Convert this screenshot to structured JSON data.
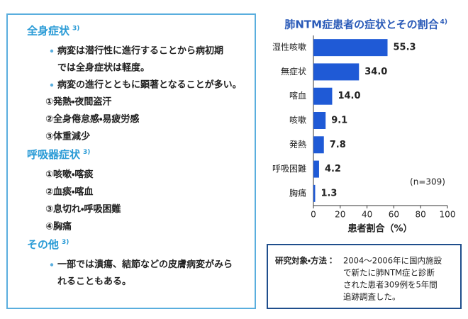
{
  "symptoms": {
    "sections": [
      {
        "heading": "全身症状",
        "ref": "3)",
        "items": [
          {
            "lines": [
              "病変は潜行性に進行することから病初期",
              "では全身症状は軽度。"
            ]
          },
          {
            "lines": [
              "病変の進行とともに顕著となることが多い。"
            ]
          },
          {
            "lines": [
              "①発熱・夜間盗汗"
            ]
          },
          {
            "lines": [
              "②全身倦怠感・易疲労感"
            ]
          },
          {
            "lines": [
              "③体重減少"
            ]
          }
        ]
      },
      {
        "heading": "呼吸器症状",
        "ref": "3)",
        "items": [
          {
            "lines": [
              "①咳嗽・喀痰"
            ]
          },
          {
            "lines": [
              "②血痰・喀血"
            ]
          },
          {
            "lines": [
              "③息切れ・呼吸困難"
            ]
          },
          {
            "lines": [
              "④胸痛"
            ]
          }
        ]
      },
      {
        "heading": "その他",
        "ref": "3)",
        "items": [
          {
            "lines": [
              "一部では潰瘍、結節などの皮膚病変がみら",
              "れることもある。"
            ]
          }
        ]
      }
    ]
  },
  "chart_data": {
    "type": "hbar",
    "title": "肺NTM症患者の症状とその割合",
    "title_ref": "4)",
    "categories": [
      "湿性咳嗽",
      "無症状",
      "喀血",
      "咳嗽",
      "発熱",
      "呼吸困難",
      "胸痛"
    ],
    "values": [
      55.3,
      34.0,
      14.0,
      9.1,
      7.8,
      4.2,
      1.3
    ],
    "value_labels": [
      "55.3",
      "34.0",
      "14.0",
      "9.1",
      "7.8",
      "4.2",
      "1.3"
    ],
    "color": "#1f5ad6",
    "xlim": [
      0,
      100
    ],
    "xticks": [
      0,
      20,
      40,
      60,
      80,
      100
    ],
    "xlabel": "患者割合（%）",
    "annotation": "(n=309)",
    "grid": false
  },
  "note": {
    "label": "研究対象・方法：",
    "lines": [
      "2004～2006年に国内施設",
      "で新たに肺NTM症と診断",
      "された患者309例を5年間",
      "追跡調査した。"
    ]
  }
}
